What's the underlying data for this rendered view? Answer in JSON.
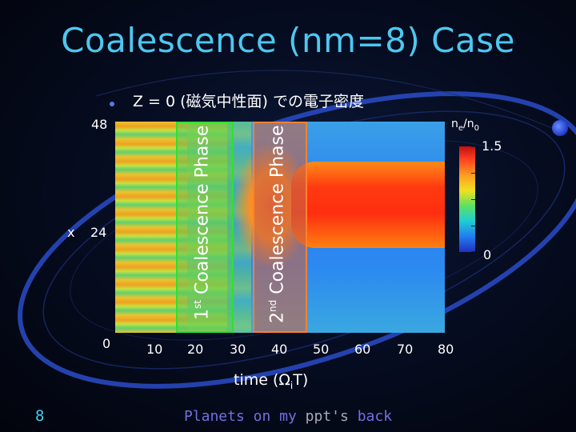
{
  "slide": {
    "title": "Coalescence (nm=8) Case",
    "subtitle": "Z = 0 (磁気中性面) での電子密度",
    "page_number": "8",
    "footer_parts": {
      "prefix": "Planets on my ",
      "ppt": "ppt's",
      "suffix": " back"
    }
  },
  "plot": {
    "y_ticks": [
      "48",
      "24",
      "0"
    ],
    "y_axis_label": "x",
    "x_ticks": [
      "10",
      "20",
      "30",
      "40",
      "50",
      "60",
      "70",
      "80"
    ],
    "x_axis_label_main": "time (Ω",
    "x_axis_label_sub": "i",
    "x_axis_label_end": "T)",
    "phase1": {
      "sup": "st",
      "num": "1",
      "text": "Coalescence Phase"
    },
    "phase2": {
      "sup": "nd",
      "num": "2",
      "text": "Coalescence Phase"
    },
    "colorbar": {
      "title_main": "n",
      "title_sub1": "e",
      "title_mid": "/n",
      "title_sub2": "0",
      "max": "1.5",
      "min": "0"
    }
  }
}
